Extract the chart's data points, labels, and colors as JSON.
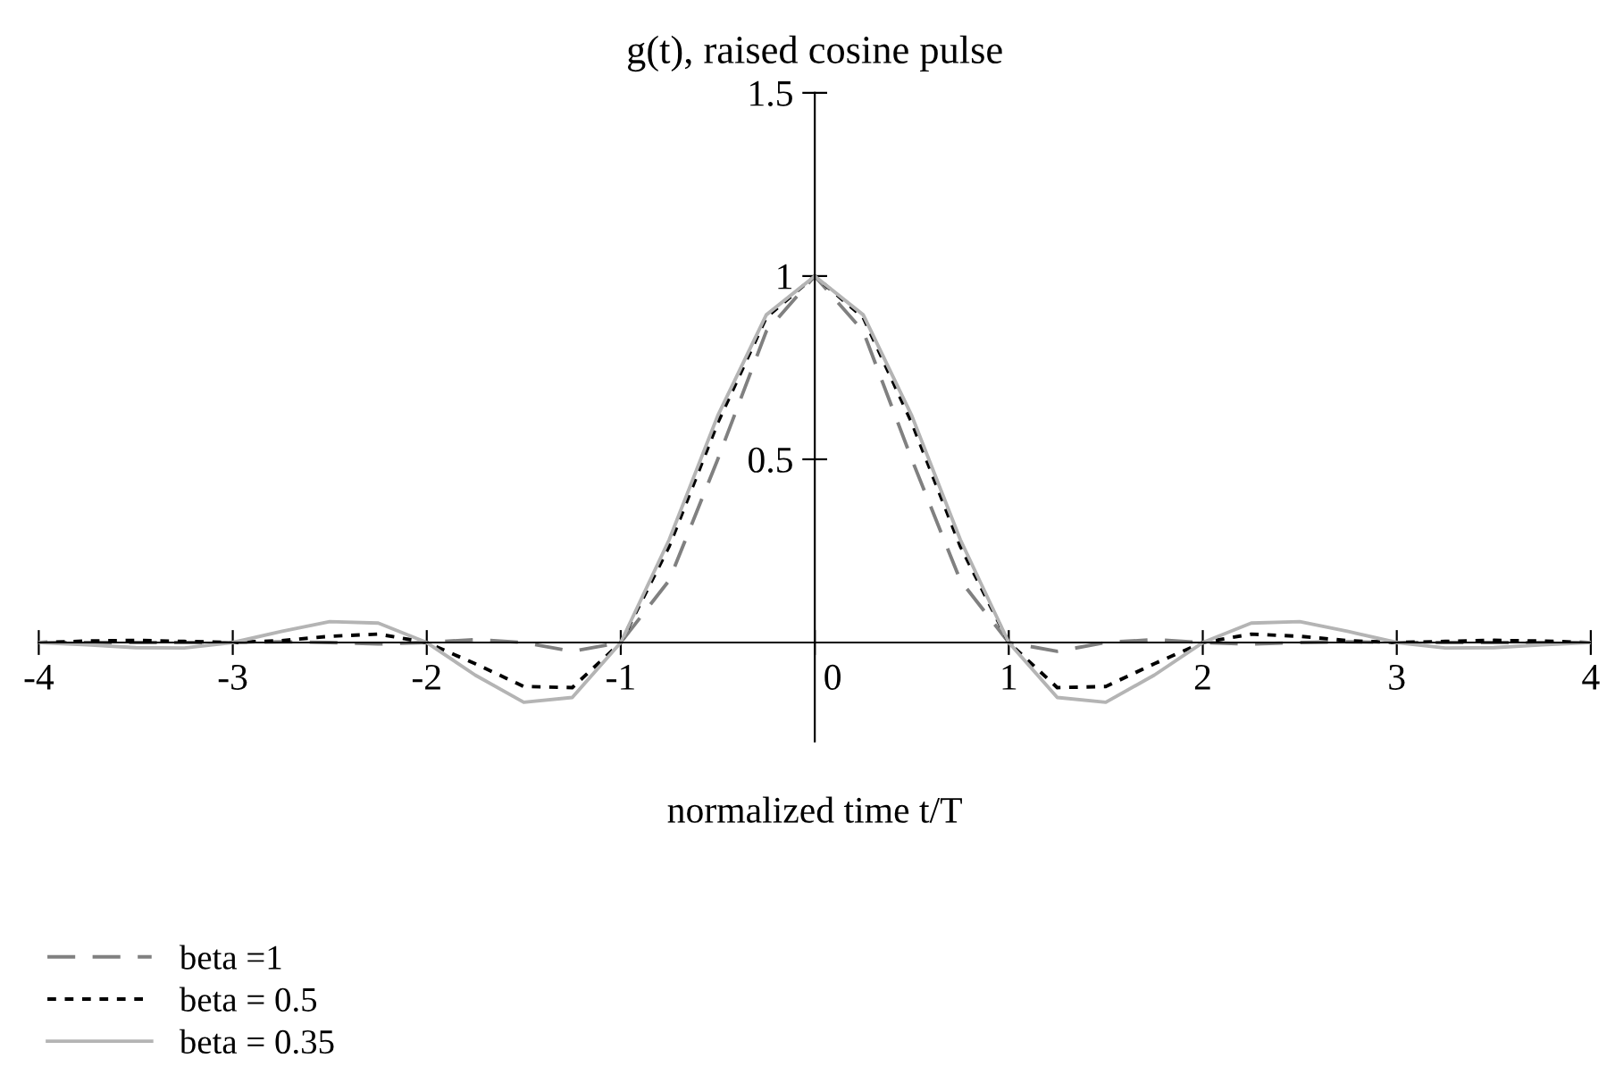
{
  "chart_data": {
    "type": "line",
    "title": "g(t), raised cosine pulse",
    "xlabel": "normalized time t/T",
    "x": [
      -4,
      -3.75,
      -3.5,
      -3.25,
      -3,
      -2.75,
      -2.5,
      -2.25,
      -2,
      -1.75,
      -1.5,
      -1.25,
      -1,
      -0.75,
      -0.5,
      -0.25,
      0,
      0.25,
      0.5,
      0.75,
      1,
      1.25,
      1.5,
      1.75,
      2,
      2.25,
      2.5,
      2.75,
      3,
      3.25,
      3.5,
      3.75,
      4
    ],
    "series": [
      {
        "name": "beta =1",
        "color": "#808080",
        "line_style": "dashed",
        "values": [
          0,
          0,
          0,
          0,
          0,
          0.002,
          0,
          -0.004,
          0,
          0.008,
          0,
          -0.024,
          0,
          0.17,
          0.5,
          0.849,
          1,
          0.849,
          0.5,
          0.17,
          0,
          -0.024,
          0,
          0.008,
          0,
          -0.004,
          0,
          0.002,
          0,
          0,
          0,
          0,
          0
        ]
      },
      {
        "name": "beta = 0.5",
        "color": "#000000",
        "line_style": "dotted",
        "values": [
          0,
          0.004,
          0.006,
          0.003,
          0,
          0.005,
          0.017,
          0.023,
          0,
          -0.058,
          -0.12,
          -0.123,
          0,
          0.263,
          0.6,
          0.887,
          1,
          0.887,
          0.6,
          0.263,
          0,
          -0.123,
          -0.12,
          -0.058,
          0,
          0.023,
          0.017,
          0.005,
          0,
          0.003,
          0.006,
          0.004,
          0
        ]
      },
      {
        "name": "beta = 0.35",
        "color": "#b4b4b4",
        "line_style": "solid",
        "values": [
          0,
          -0.006,
          -0.014,
          -0.015,
          0,
          0.03,
          0.057,
          0.053,
          0,
          -0.089,
          -0.163,
          -0.15,
          0,
          0.281,
          0.619,
          0.894,
          1,
          0.894,
          0.619,
          0.281,
          0,
          -0.15,
          -0.163,
          -0.089,
          0,
          0.053,
          0.057,
          0.03,
          0,
          -0.015,
          -0.014,
          -0.006,
          0
        ]
      }
    ],
    "xlim": [
      -4,
      4
    ],
    "xticks": [
      -4,
      -3,
      -2,
      -1,
      0,
      1,
      2,
      3,
      4
    ],
    "ylim": [
      -0.27,
      1.5
    ],
    "yticks": [
      0.5,
      1,
      1.5
    ],
    "grid": false,
    "legend": "bottom left"
  }
}
